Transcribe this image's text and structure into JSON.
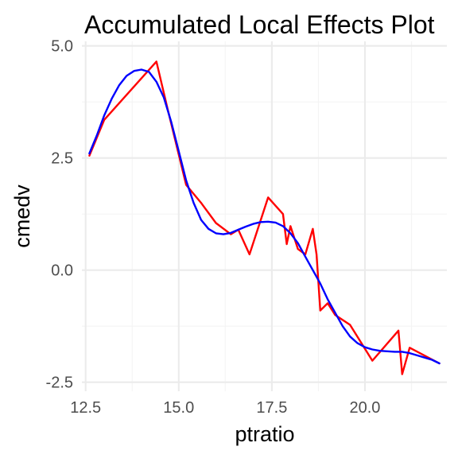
{
  "chart_data": {
    "type": "line",
    "title": "Accumulated Local Effects Plot",
    "xlabel": "ptratio",
    "ylabel": "cmedv",
    "xlim": [
      12.4,
      22.2
    ],
    "ylim": [
      -2.7,
      5.1
    ],
    "xticks": [
      12.5,
      15.0,
      17.5,
      20.0
    ],
    "xtick_labels": [
      "12.5",
      "15.0",
      "17.5",
      "20.0"
    ],
    "yticks": [
      -2.5,
      0.0,
      2.5,
      5.0
    ],
    "ytick_labels": [
      "-2.5",
      "0.0",
      "2.5",
      "5.0"
    ],
    "grid": true,
    "legend": "none",
    "series": [
      {
        "color": "#ff0000",
        "x": [
          12.6,
          13.0,
          14.4,
          14.7,
          15.2,
          15.6,
          16.0,
          16.4,
          16.6,
          16.9,
          17.4,
          17.8,
          17.9,
          18.0,
          18.2,
          18.4,
          18.6,
          18.7,
          18.8,
          19.0,
          19.2,
          19.6,
          20.2,
          20.9,
          21.0,
          21.2,
          22.0
        ],
        "y": [
          2.55,
          3.35,
          4.65,
          3.6,
          1.9,
          1.5,
          1.05,
          0.8,
          0.9,
          0.35,
          1.62,
          1.25,
          0.58,
          0.98,
          0.47,
          0.35,
          0.92,
          0.35,
          -0.9,
          -0.74,
          -1.0,
          -1.22,
          -2.02,
          -1.35,
          -2.32,
          -1.73,
          -2.08
        ]
      },
      {
        "color": "#0000ff",
        "x": [
          12.6,
          12.8,
          13.0,
          13.2,
          13.4,
          13.6,
          13.8,
          14.0,
          14.2,
          14.4,
          14.6,
          14.8,
          15.0,
          15.2,
          15.4,
          15.6,
          15.8,
          16.0,
          16.2,
          16.4,
          16.6,
          16.8,
          17.0,
          17.2,
          17.4,
          17.6,
          17.8,
          18.0,
          18.2,
          18.4,
          18.6,
          18.8,
          19.0,
          19.2,
          19.4,
          19.6,
          19.8,
          20.0,
          20.2,
          20.4,
          20.6,
          20.8,
          21.0,
          21.2,
          21.4,
          21.6,
          21.8,
          22.0
        ],
        "y": [
          2.6,
          3.0,
          3.45,
          3.82,
          4.12,
          4.33,
          4.44,
          4.47,
          4.42,
          4.2,
          3.85,
          3.3,
          2.65,
          2.0,
          1.5,
          1.12,
          0.92,
          0.82,
          0.8,
          0.83,
          0.9,
          0.97,
          1.03,
          1.07,
          1.08,
          1.06,
          0.98,
          0.82,
          0.6,
          0.3,
          0.0,
          -0.3,
          -0.65,
          -0.95,
          -1.25,
          -1.48,
          -1.63,
          -1.72,
          -1.77,
          -1.8,
          -1.81,
          -1.82,
          -1.82,
          -1.85,
          -1.9,
          -1.95,
          -2.0,
          -2.08
        ]
      }
    ]
  }
}
